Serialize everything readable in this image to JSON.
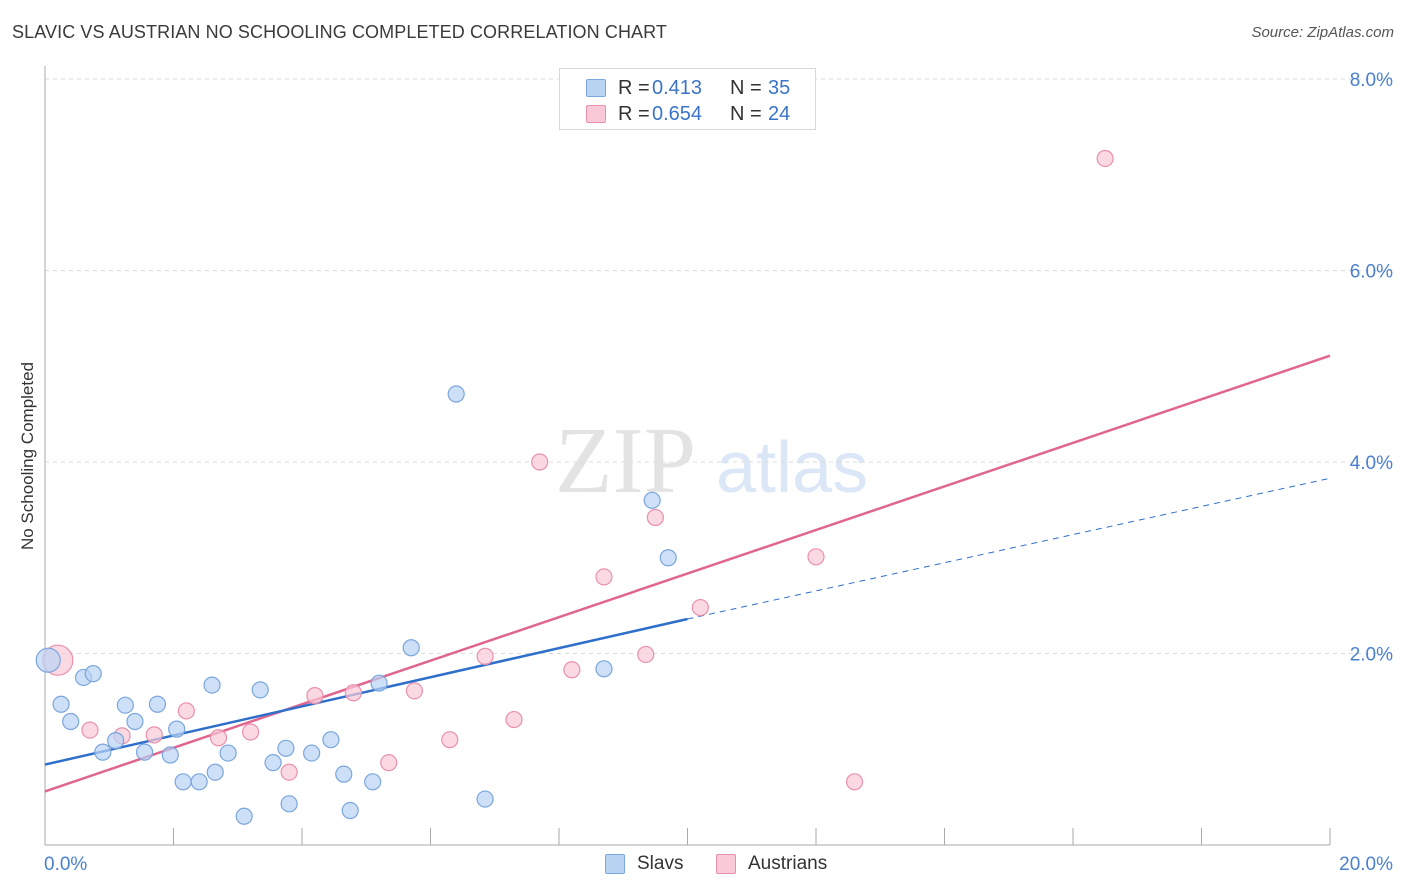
{
  "title": "SLAVIC VS AUSTRIAN NO SCHOOLING COMPLETED CORRELATION CHART",
  "source": "Source: ZipAtlas.com",
  "watermark": {
    "zip": "ZIP",
    "atlas": "atlas"
  },
  "colors": {
    "slavs_fill": "#b9d3f3",
    "slavs_stroke": "#7aa6dd",
    "slavs_line": "#2f6fcc",
    "austrians_fill": "#f9c9d7",
    "austrians_stroke": "#e990ac",
    "austrians_line": "#e0658f",
    "tick_text": "#4a80cf",
    "grid": "#dcdcdc"
  },
  "stats": {
    "slavs": {
      "r_label": "R =",
      "r_value": "0.413",
      "n_label": "N =",
      "n_value": "35"
    },
    "austrians": {
      "r_label": "R =",
      "r_value": "0.654",
      "n_label": "N =",
      "n_value": "24"
    }
  },
  "legend": {
    "slavs": "Slavs",
    "austrians": "Austrians"
  },
  "chart_data": {
    "type": "scatter",
    "title": "SLAVIC VS AUSTRIAN NO SCHOOLING COMPLETED CORRELATION CHART",
    "xlabel": "",
    "ylabel": "No Schooling Completed",
    "xlim": [
      0,
      20
    ],
    "ylim": [
      0,
      8
    ],
    "x_tick_labels": [
      {
        "value": 0,
        "label": "0.0%"
      },
      {
        "value": 20,
        "label": "20.0%"
      }
    ],
    "y_tick_labels": [
      {
        "value": 2,
        "label": "2.0%"
      },
      {
        "value": 4,
        "label": "4.0%"
      },
      {
        "value": 6,
        "label": "6.0%"
      },
      {
        "value": 8,
        "label": "8.0%"
      }
    ],
    "grid": true,
    "series": [
      {
        "name": "Slavs",
        "points": [
          [
            0.05,
            1.93
          ],
          [
            0.25,
            1.47
          ],
          [
            0.4,
            1.29
          ],
          [
            0.6,
            1.75
          ],
          [
            0.75,
            1.79
          ],
          [
            0.9,
            0.97
          ],
          [
            1.1,
            1.09
          ],
          [
            1.25,
            1.46
          ],
          [
            1.4,
            1.29
          ],
          [
            1.55,
            0.97
          ],
          [
            1.75,
            1.47
          ],
          [
            1.95,
            0.94
          ],
          [
            2.05,
            1.21
          ],
          [
            2.15,
            0.66
          ],
          [
            2.4,
            0.66
          ],
          [
            2.6,
            1.67
          ],
          [
            2.65,
            0.76
          ],
          [
            2.85,
            0.96
          ],
          [
            3.1,
            0.3
          ],
          [
            3.35,
            1.62
          ],
          [
            3.55,
            0.86
          ],
          [
            3.75,
            1.01
          ],
          [
            3.8,
            0.43
          ],
          [
            4.15,
            0.96
          ],
          [
            4.45,
            1.1
          ],
          [
            4.65,
            0.74
          ],
          [
            4.75,
            0.36
          ],
          [
            5.1,
            0.66
          ],
          [
            5.2,
            1.69
          ],
          [
            5.7,
            2.06
          ],
          [
            6.4,
            4.71
          ],
          [
            6.85,
            0.48
          ],
          [
            8.7,
            1.84
          ],
          [
            9.45,
            3.6
          ],
          [
            9.7,
            3.0
          ]
        ],
        "trend": {
          "x0": 0,
          "y0": 0.84,
          "x1": 10,
          "y1": 2.36,
          "dashed_to": 20,
          "dashed_y": 3.83
        }
      },
      {
        "name": "Austrians",
        "points": [
          [
            0.2,
            1.93
          ],
          [
            0.7,
            1.2
          ],
          [
            1.2,
            1.14
          ],
          [
            1.7,
            1.15
          ],
          [
            2.2,
            1.4
          ],
          [
            2.7,
            1.12
          ],
          [
            3.2,
            1.18
          ],
          [
            3.8,
            0.76
          ],
          [
            4.2,
            1.56
          ],
          [
            4.8,
            1.59
          ],
          [
            5.35,
            0.86
          ],
          [
            5.75,
            1.61
          ],
          [
            6.3,
            1.1
          ],
          [
            6.85,
            1.97
          ],
          [
            7.3,
            1.31
          ],
          [
            7.7,
            4.0
          ],
          [
            8.2,
            1.83
          ],
          [
            8.7,
            2.8
          ],
          [
            9.35,
            1.99
          ],
          [
            9.5,
            3.42
          ],
          [
            10.2,
            2.48
          ],
          [
            12.0,
            3.01
          ],
          [
            12.6,
            0.66
          ],
          [
            16.5,
            7.17
          ]
        ],
        "trend": {
          "x0": 0,
          "y0": 0.56,
          "x1": 20,
          "y1": 5.11
        }
      }
    ]
  }
}
